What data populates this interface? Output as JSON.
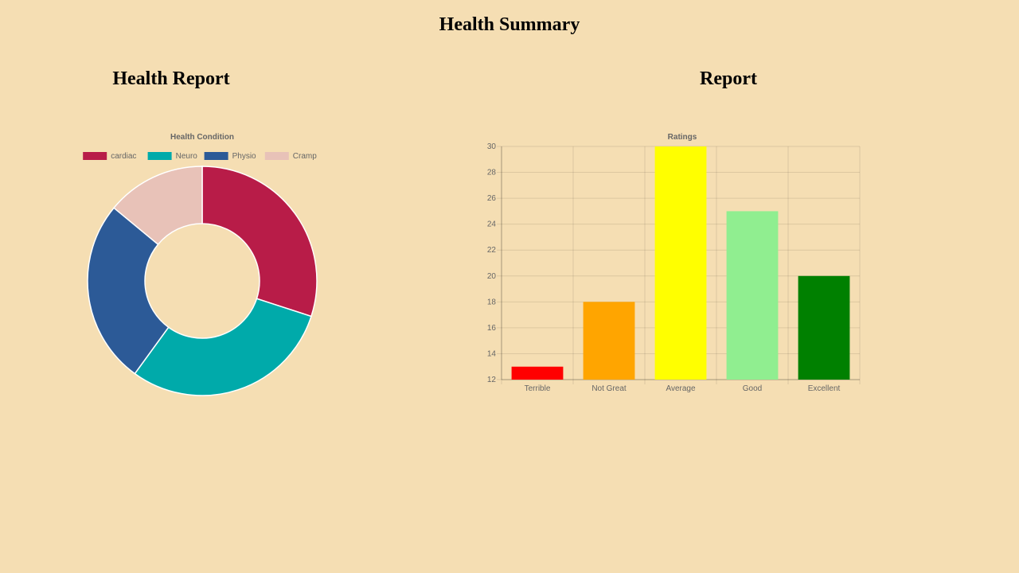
{
  "page": {
    "title": "Health Summary",
    "left_section_title": "Health Report",
    "right_section_title": "Report"
  },
  "chart_data": [
    {
      "type": "pie",
      "style": "doughnut",
      "title": "Health Condition",
      "legend_position": "top",
      "labels": [
        "cardiac",
        "Neuro",
        "Physio",
        "Cramp"
      ],
      "values": [
        30,
        30,
        26,
        14
      ],
      "colors": [
        "#b81c48",
        "#00aaaa",
        "#2c5a97",
        "#e8c2b8"
      ]
    },
    {
      "type": "bar",
      "title": "Ratings",
      "categories": [
        "Terrible",
        "Not Great",
        "Average",
        "Good",
        "Excellent"
      ],
      "values": [
        13,
        18,
        30,
        25,
        20
      ],
      "colors": [
        "#ff0000",
        "#ffa500",
        "#ffff00",
        "#90ee90",
        "#008000"
      ],
      "ylim": [
        12,
        30
      ],
      "yticks": [
        12,
        14,
        16,
        18,
        20,
        22,
        24,
        26,
        28,
        30
      ],
      "grid": true,
      "legend": false
    }
  ]
}
